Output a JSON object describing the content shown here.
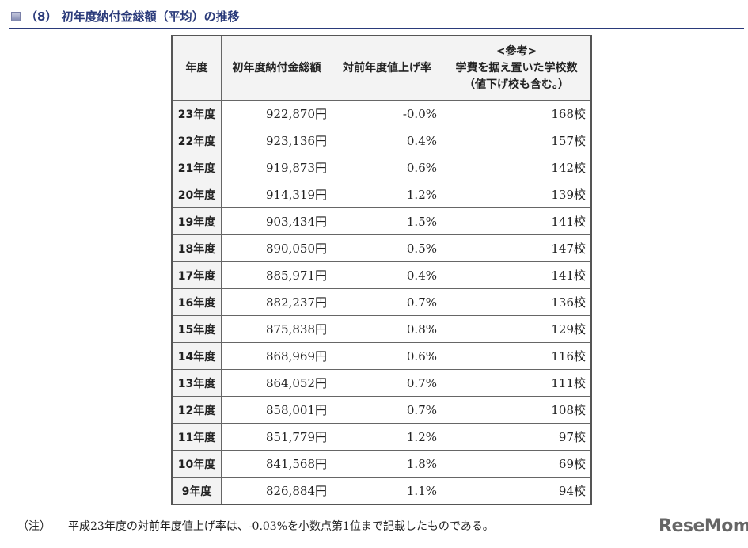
{
  "header": {
    "title": "（8） 初年度納付金総額（平均）の推移"
  },
  "table": {
    "headers": [
      "年度",
      "初年度納付金総額",
      "対前年度値上げ率",
      [
        "<参考>",
        "学費を据え置いた学校数",
        "（値下げ校も含む。）"
      ]
    ],
    "rows": [
      [
        "23年度",
        "922,870円",
        "-0.0%",
        "168校"
      ],
      [
        "22年度",
        "923,136円",
        "0.4%",
        "157校"
      ],
      [
        "21年度",
        "919,873円",
        "0.6%",
        "142校"
      ],
      [
        "20年度",
        "914,319円",
        "1.2%",
        "139校"
      ],
      [
        "19年度",
        "903,434円",
        "1.5%",
        "141校"
      ],
      [
        "18年度",
        "890,050円",
        "0.5%",
        "147校"
      ],
      [
        "17年度",
        "885,971円",
        "0.4%",
        "141校"
      ],
      [
        "16年度",
        "882,237円",
        "0.7%",
        "136校"
      ],
      [
        "15年度",
        "875,838円",
        "0.8%",
        "129校"
      ],
      [
        "14年度",
        "868,969円",
        "0.6%",
        "116校"
      ],
      [
        "13年度",
        "864,052円",
        "0.7%",
        "111校"
      ],
      [
        "12年度",
        "858,001円",
        "0.7%",
        "108校"
      ],
      [
        "11年度",
        "851,779円",
        "1.2%",
        "97校"
      ],
      [
        "10年度",
        "841,568円",
        "1.8%",
        "69校"
      ],
      [
        "9年度",
        "826,884円",
        "1.1%",
        "94校"
      ]
    ]
  },
  "note": {
    "label": "（注）",
    "text": "平成23年度の対前年度値上げ率は、-0.03%を小数点第1位まで記載したものである。"
  },
  "logo": "ReseMom"
}
